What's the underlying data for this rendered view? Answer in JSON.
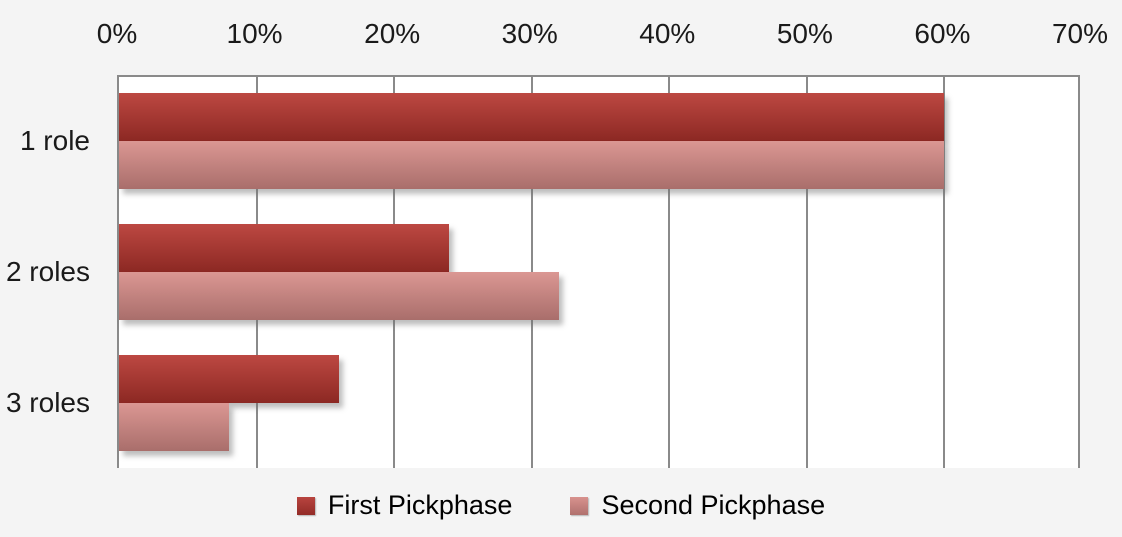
{
  "chart_data": {
    "type": "bar",
    "orientation": "horizontal",
    "title": "",
    "categories": [
      "1 role",
      "2 roles",
      "3 roles"
    ],
    "series": [
      {
        "name": "First Pickphase",
        "values": [
          60,
          24,
          16
        ],
        "color_top": "#bd4842",
        "color_bottom": "#8c2823"
      },
      {
        "name": "Second Pickphase",
        "values": [
          60,
          32,
          8
        ],
        "color_top": "#db9793",
        "color_bottom": "#a96e6b"
      }
    ],
    "x_axis": {
      "position": "top",
      "min": 0,
      "max": 70,
      "tick_step": 10,
      "tick_values": [
        0,
        10,
        20,
        30,
        40,
        50,
        60,
        70
      ],
      "tick_labels": [
        "0%",
        "10%",
        "20%",
        "30%",
        "40%",
        "50%",
        "60%",
        "70%"
      ]
    },
    "grid": true,
    "gridline_color": "#8a8a8a",
    "plot_background": "#ffffff",
    "page_background": "#f4f4f4",
    "text_color": "#1a1a1a",
    "legend_position": "bottom"
  }
}
